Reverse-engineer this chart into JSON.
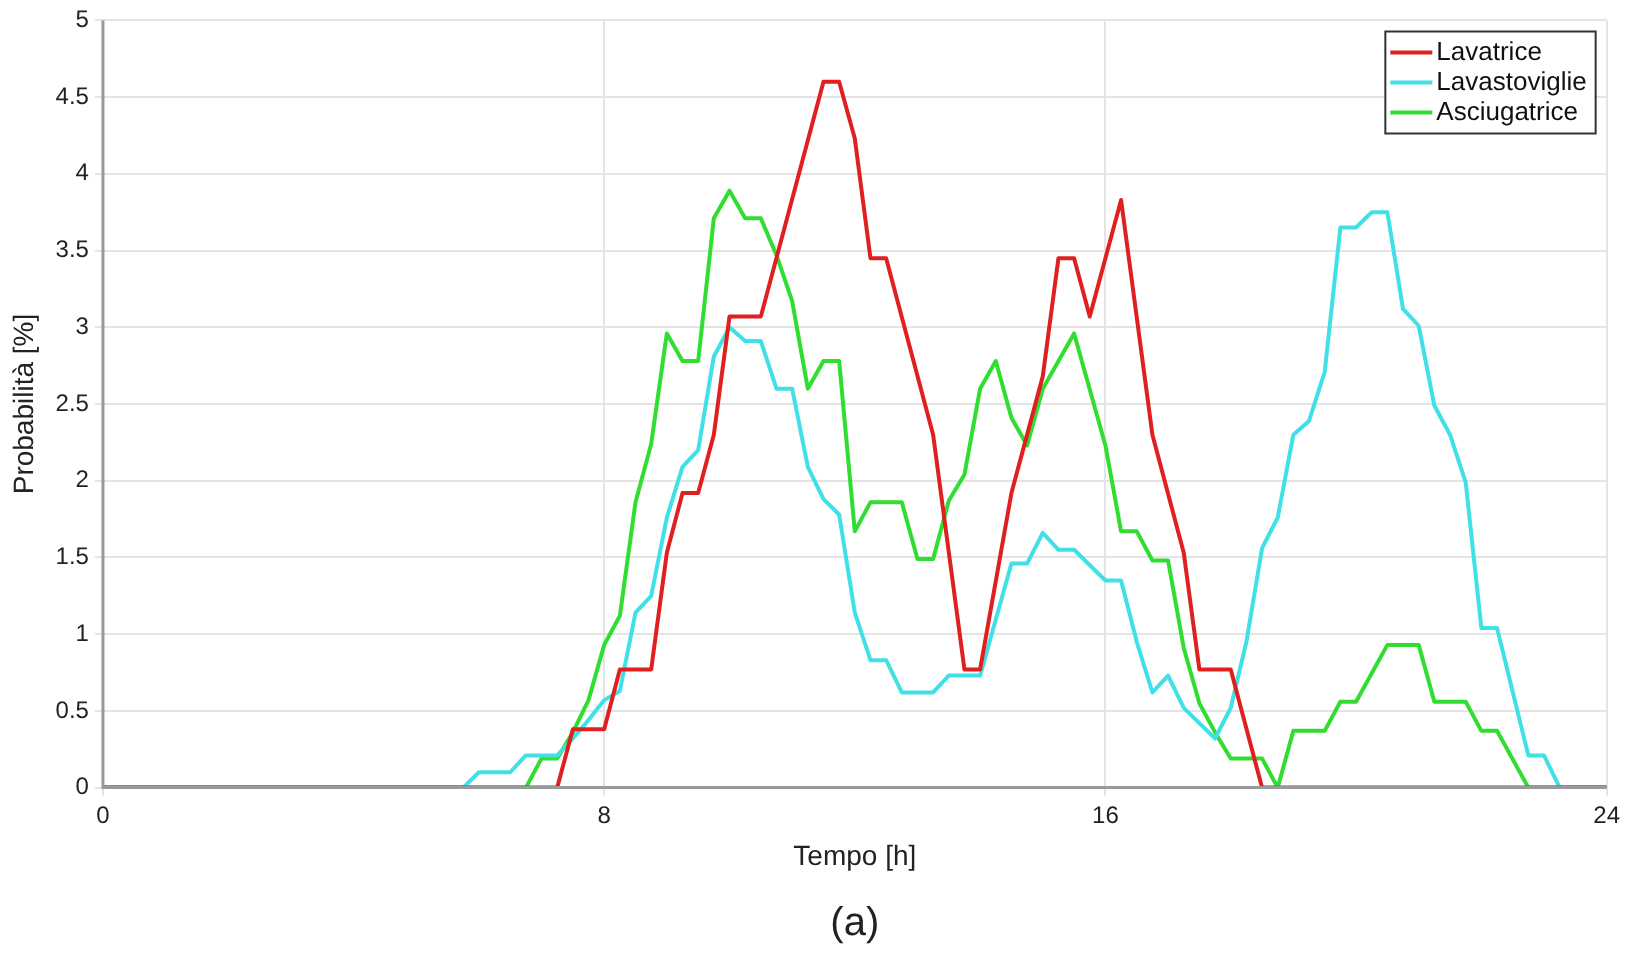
{
  "chart_data": {
    "type": "line",
    "xlabel": "Tempo [h]",
    "ylabel": "Probabilità [%]",
    "annotations": [
      "(a)"
    ],
    "xlim": [
      0,
      24
    ],
    "xticks": [
      0,
      8,
      16,
      24
    ],
    "ylim": [
      0,
      5
    ],
    "yticks": [
      0,
      0.5,
      1,
      1.5,
      2,
      2.5,
      3,
      3.5,
      4,
      4.5,
      5
    ],
    "grid": true,
    "legend": "top right",
    "marker": "none",
    "line_style": "solid",
    "series": [
      {
        "name": "Lavatrice",
        "color": "#e02020",
        "x": [
          0,
          7.25,
          7.5,
          8,
          8.25,
          8.75,
          9,
          9.25,
          9.5,
          9.75,
          10,
          10.5,
          11.5,
          11.75,
          12,
          12.25,
          12.5,
          13.25,
          13.75,
          14,
          14.5,
          15,
          15.25,
          15.5,
          15.75,
          16.25,
          16.75,
          17.25,
          17.5,
          18,
          18.5,
          24
        ],
        "values": [
          0,
          0,
          0.38,
          0.38,
          0.77,
          0.77,
          1.53,
          1.92,
          1.92,
          2.3,
          3.07,
          3.07,
          4.6,
          4.6,
          4.23,
          3.45,
          3.45,
          2.3,
          0.77,
          0.77,
          1.92,
          2.68,
          3.45,
          3.45,
          3.07,
          3.83,
          2.3,
          1.53,
          0.77,
          0.77,
          0,
          0
        ]
      },
      {
        "name": "Lavastoviglie",
        "color": "#40e0e6",
        "x": [
          0,
          5.75,
          6,
          6.5,
          6.75,
          7.25,
          7.5,
          7.75,
          8,
          8.25,
          8.5,
          8.75,
          9,
          9.25,
          9.5,
          9.75,
          10,
          10.25,
          10.5,
          10.75,
          11,
          11.25,
          11.5,
          11.75,
          12,
          12.25,
          12.5,
          12.75,
          13.25,
          13.5,
          14,
          14.5,
          14.75,
          15,
          15.25,
          15.5,
          16,
          16.25,
          16.5,
          16.75,
          17,
          17.25,
          17.75,
          18,
          18.25,
          18.5,
          18.75,
          19,
          19.25,
          19.5,
          19.75,
          20,
          20.25,
          20.5,
          20.75,
          21,
          21.25,
          21.5,
          21.75,
          22,
          22.25,
          22.75,
          23,
          23.25,
          24
        ],
        "values": [
          0,
          0,
          0.1,
          0.1,
          0.21,
          0.21,
          0.32,
          0.44,
          0.57,
          0.63,
          1.14,
          1.25,
          1.76,
          2.09,
          2.2,
          2.81,
          3,
          2.91,
          2.91,
          2.6,
          2.6,
          2.09,
          1.88,
          1.78,
          1.14,
          0.83,
          0.83,
          0.62,
          0.62,
          0.73,
          0.73,
          1.46,
          1.46,
          1.66,
          1.55,
          1.55,
          1.35,
          1.35,
          0.95,
          0.62,
          0.73,
          0.52,
          0.32,
          0.52,
          0.95,
          1.56,
          1.76,
          2.3,
          2.39,
          2.71,
          3.65,
          3.65,
          3.75,
          3.75,
          3.12,
          3.01,
          2.49,
          2.3,
          1.99,
          1.04,
          1.04,
          0.21,
          0.21,
          0,
          0
        ]
      },
      {
        "name": "Asciugatrice",
        "color": "#30dd30",
        "x": [
          0,
          6.75,
          7,
          7.25,
          7.5,
          7.75,
          8,
          8.25,
          8.5,
          8.75,
          9,
          9.25,
          9.5,
          9.75,
          10,
          10.25,
          10.5,
          10.75,
          11,
          11.25,
          11.5,
          11.75,
          12,
          12.25,
          12.75,
          13,
          13.25,
          13.5,
          13.75,
          14,
          14.25,
          14.5,
          14.75,
          15,
          15.5,
          16,
          16.25,
          16.5,
          16.75,
          17,
          17.25,
          17.5,
          17.75,
          18,
          18.5,
          18.75,
          19,
          19.5,
          19.75,
          20,
          20.5,
          21,
          21.25,
          21.75,
          22,
          22.25,
          22.75,
          24
        ],
        "values": [
          0,
          0,
          0.19,
          0.19,
          0.36,
          0.57,
          0.93,
          1.12,
          1.86,
          2.24,
          2.96,
          2.78,
          2.78,
          3.71,
          3.89,
          3.71,
          3.71,
          3.47,
          3.17,
          2.6,
          2.78,
          2.78,
          1.67,
          1.86,
          1.86,
          1.49,
          1.49,
          1.87,
          2.04,
          2.6,
          2.78,
          2.41,
          2.23,
          2.6,
          2.96,
          2.23,
          1.67,
          1.67,
          1.48,
          1.48,
          0.91,
          0.55,
          0.36,
          0.19,
          0.19,
          0,
          0.37,
          0.37,
          0.56,
          0.56,
          0.93,
          0.93,
          0.56,
          0.56,
          0.37,
          0.37,
          0,
          0
        ]
      }
    ]
  }
}
